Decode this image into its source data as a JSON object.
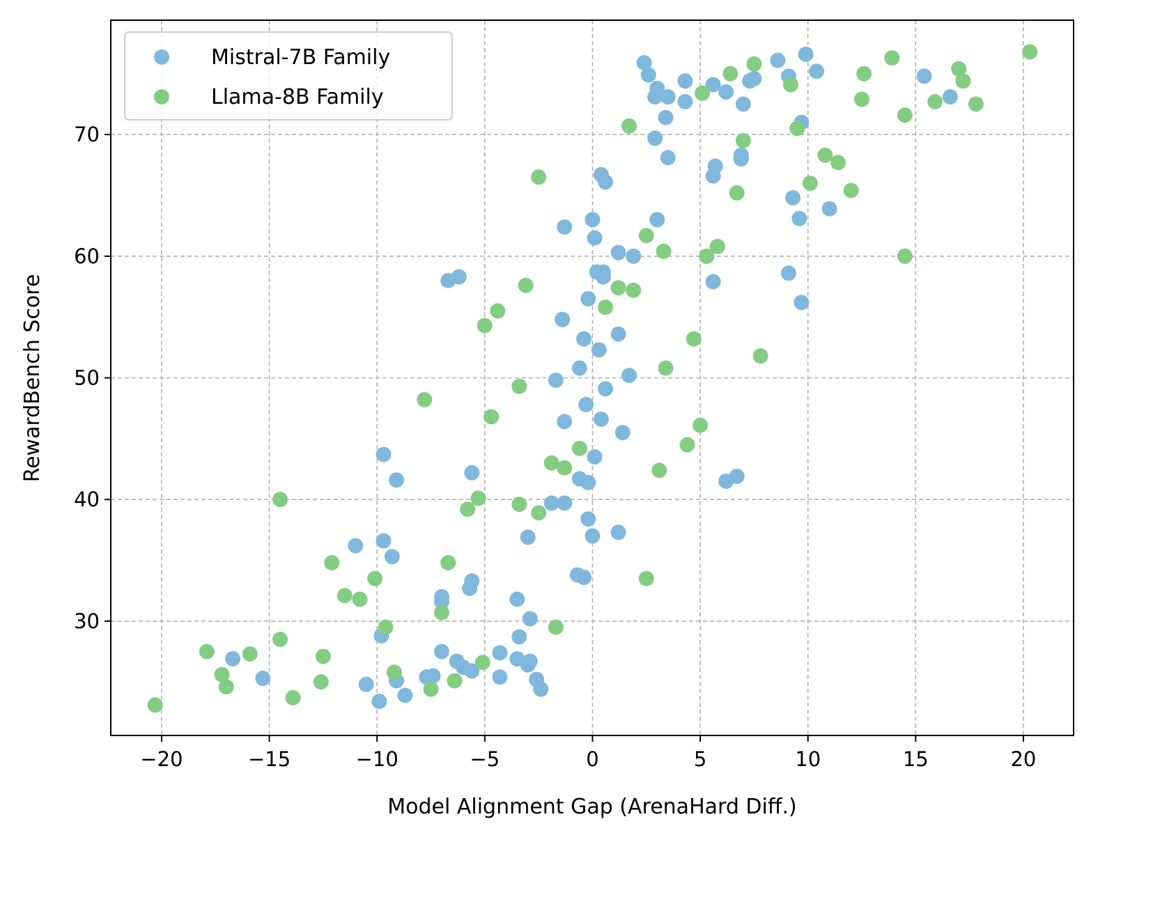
{
  "chart_data": {
    "type": "scatter",
    "title": "",
    "xlabel": "Model Alignment Gap (ArenaHard Diff.)",
    "ylabel": "RewardBench Score",
    "xlim": [
      -22.36,
      22.33
    ],
    "ylim": [
      20.6,
      79.4
    ],
    "xticks": [
      -20,
      -15,
      -10,
      -5,
      0,
      5,
      10,
      15,
      20
    ],
    "xtick_labels": [
      "−20",
      "−15",
      "−10",
      "−5",
      "0",
      "5",
      "10",
      "15",
      "20"
    ],
    "yticks": [
      30,
      40,
      50,
      60,
      70
    ],
    "ytick_labels": [
      "30",
      "40",
      "50",
      "60",
      "70"
    ],
    "grid": true,
    "legend_position": "top-left",
    "series": [
      {
        "name": "Mistral-7B Family",
        "color": "#7fb8dc",
        "points": [
          [
            2.4,
            75.9
          ],
          [
            2.6,
            74.9
          ],
          [
            3.0,
            73.8
          ],
          [
            2.9,
            73.1
          ],
          [
            3.5,
            73.1
          ],
          [
            3.4,
            71.4
          ],
          [
            4.3,
            74.4
          ],
          [
            4.3,
            72.7
          ],
          [
            5.6,
            74.1
          ],
          [
            6.2,
            73.5
          ],
          [
            7.0,
            72.5
          ],
          [
            7.3,
            74.4
          ],
          [
            7.5,
            74.6
          ],
          [
            8.6,
            76.1
          ],
          [
            9.1,
            74.8
          ],
          [
            9.9,
            76.6
          ],
          [
            10.4,
            75.2
          ],
          [
            9.7,
            71.0
          ],
          [
            15.4,
            74.8
          ],
          [
            16.6,
            73.1
          ],
          [
            2.9,
            69.7
          ],
          [
            3.5,
            68.1
          ],
          [
            0.4,
            66.7
          ],
          [
            0.6,
            66.1
          ],
          [
            5.7,
            67.4
          ],
          [
            5.6,
            66.6
          ],
          [
            6.9,
            68.3
          ],
          [
            6.9,
            68.0
          ],
          [
            9.3,
            64.8
          ],
          [
            9.6,
            63.1
          ],
          [
            11.0,
            63.9
          ],
          [
            -1.3,
            62.4
          ],
          [
            0.0,
            63.0
          ],
          [
            0.1,
            61.5
          ],
          [
            3.0,
            63.0
          ],
          [
            1.2,
            60.3
          ],
          [
            1.9,
            60.0
          ],
          [
            0.2,
            58.7
          ],
          [
            0.5,
            58.7
          ],
          [
            0.5,
            58.3
          ],
          [
            5.6,
            57.9
          ],
          [
            9.1,
            58.6
          ],
          [
            -6.7,
            58.0
          ],
          [
            -6.2,
            58.3
          ],
          [
            -0.2,
            56.5
          ],
          [
            -1.4,
            54.8
          ],
          [
            -0.4,
            53.2
          ],
          [
            0.3,
            52.3
          ],
          [
            1.2,
            53.6
          ],
          [
            -0.6,
            50.8
          ],
          [
            -1.7,
            49.8
          ],
          [
            0.6,
            49.1
          ],
          [
            1.7,
            50.2
          ],
          [
            -0.3,
            47.8
          ],
          [
            -1.3,
            46.4
          ],
          [
            0.4,
            46.6
          ],
          [
            1.4,
            45.5
          ],
          [
            9.7,
            56.2
          ],
          [
            -9.7,
            43.7
          ],
          [
            -9.1,
            41.6
          ],
          [
            -5.6,
            42.2
          ],
          [
            0.1,
            43.5
          ],
          [
            -0.6,
            41.7
          ],
          [
            -0.2,
            41.4
          ],
          [
            6.2,
            41.5
          ],
          [
            6.7,
            41.9
          ],
          [
            -1.9,
            39.7
          ],
          [
            -1.3,
            39.7
          ],
          [
            -0.2,
            38.4
          ],
          [
            0.0,
            37.0
          ],
          [
            1.2,
            37.3
          ],
          [
            -3.0,
            36.9
          ],
          [
            -11.0,
            36.2
          ],
          [
            -9.7,
            36.6
          ],
          [
            -9.3,
            35.3
          ],
          [
            -5.6,
            33.3
          ],
          [
            -5.7,
            32.7
          ],
          [
            -7.0,
            32.0
          ],
          [
            -7.0,
            31.6
          ],
          [
            -3.5,
            31.8
          ],
          [
            -0.7,
            33.8
          ],
          [
            -0.4,
            33.6
          ],
          [
            -2.9,
            30.2
          ],
          [
            -9.8,
            28.8
          ],
          [
            -3.4,
            28.7
          ],
          [
            -16.7,
            26.9
          ],
          [
            -15.3,
            25.3
          ],
          [
            -10.5,
            24.8
          ],
          [
            -9.9,
            23.4
          ],
          [
            -9.1,
            25.1
          ],
          [
            -8.7,
            23.9
          ],
          [
            -7.0,
            27.5
          ],
          [
            -7.4,
            25.5
          ],
          [
            -7.7,
            25.4
          ],
          [
            -6.3,
            26.7
          ],
          [
            -6.0,
            26.2
          ],
          [
            -5.6,
            25.9
          ],
          [
            -4.3,
            27.4
          ],
          [
            -4.3,
            25.4
          ],
          [
            -3.5,
            26.9
          ],
          [
            -3.0,
            26.4
          ],
          [
            -2.9,
            26.7
          ],
          [
            -2.6,
            25.2
          ],
          [
            -2.4,
            24.4
          ]
        ]
      },
      {
        "name": "Llama-8B Family",
        "color": "#82cd82",
        "points": [
          [
            -20.3,
            23.1
          ],
          [
            -17.9,
            27.5
          ],
          [
            -17.2,
            25.6
          ],
          [
            -17.0,
            24.6
          ],
          [
            -15.9,
            27.3
          ],
          [
            -14.5,
            28.5
          ],
          [
            -14.5,
            40.0
          ],
          [
            -13.9,
            23.7
          ],
          [
            -12.6,
            25.0
          ],
          [
            -12.5,
            27.1
          ],
          [
            -12.1,
            34.8
          ],
          [
            -11.5,
            32.1
          ],
          [
            -10.8,
            31.8
          ],
          [
            -10.1,
            33.5
          ],
          [
            -9.6,
            29.5
          ],
          [
            -9.2,
            25.8
          ],
          [
            -7.8,
            48.2
          ],
          [
            -7.5,
            24.4
          ],
          [
            -7.0,
            30.7
          ],
          [
            -6.7,
            34.8
          ],
          [
            -6.4,
            25.1
          ],
          [
            -5.8,
            39.2
          ],
          [
            -5.3,
            40.1
          ],
          [
            -5.1,
            26.6
          ],
          [
            -5.0,
            54.3
          ],
          [
            -4.7,
            46.8
          ],
          [
            -4.4,
            55.5
          ],
          [
            -3.4,
            49.3
          ],
          [
            -3.4,
            39.6
          ],
          [
            -3.1,
            57.6
          ],
          [
            -2.5,
            66.5
          ],
          [
            -2.5,
            38.9
          ],
          [
            -1.9,
            43.0
          ],
          [
            -1.7,
            29.5
          ],
          [
            -1.3,
            42.6
          ],
          [
            -0.6,
            44.2
          ],
          [
            0.6,
            55.8
          ],
          [
            1.2,
            57.4
          ],
          [
            1.9,
            57.2
          ],
          [
            1.7,
            70.7
          ],
          [
            2.5,
            61.7
          ],
          [
            2.5,
            33.5
          ],
          [
            3.1,
            42.4
          ],
          [
            3.3,
            60.4
          ],
          [
            3.4,
            50.8
          ],
          [
            4.4,
            44.5
          ],
          [
            4.7,
            53.2
          ],
          [
            5.0,
            46.1
          ],
          [
            5.1,
            73.4
          ],
          [
            5.3,
            60.0
          ],
          [
            5.8,
            60.8
          ],
          [
            6.4,
            75.0
          ],
          [
            6.7,
            65.2
          ],
          [
            7.0,
            69.5
          ],
          [
            7.5,
            75.8
          ],
          [
            7.8,
            51.8
          ],
          [
            9.2,
            74.1
          ],
          [
            9.5,
            70.5
          ],
          [
            10.1,
            66.0
          ],
          [
            10.8,
            68.3
          ],
          [
            11.4,
            67.7
          ],
          [
            12.0,
            65.4
          ],
          [
            12.5,
            72.9
          ],
          [
            12.6,
            75.0
          ],
          [
            13.9,
            76.3
          ],
          [
            14.5,
            71.6
          ],
          [
            14.5,
            60.0
          ],
          [
            15.9,
            72.7
          ],
          [
            17.0,
            75.4
          ],
          [
            17.2,
            74.4
          ],
          [
            17.8,
            72.5
          ],
          [
            20.3,
            76.8
          ]
        ]
      }
    ]
  }
}
